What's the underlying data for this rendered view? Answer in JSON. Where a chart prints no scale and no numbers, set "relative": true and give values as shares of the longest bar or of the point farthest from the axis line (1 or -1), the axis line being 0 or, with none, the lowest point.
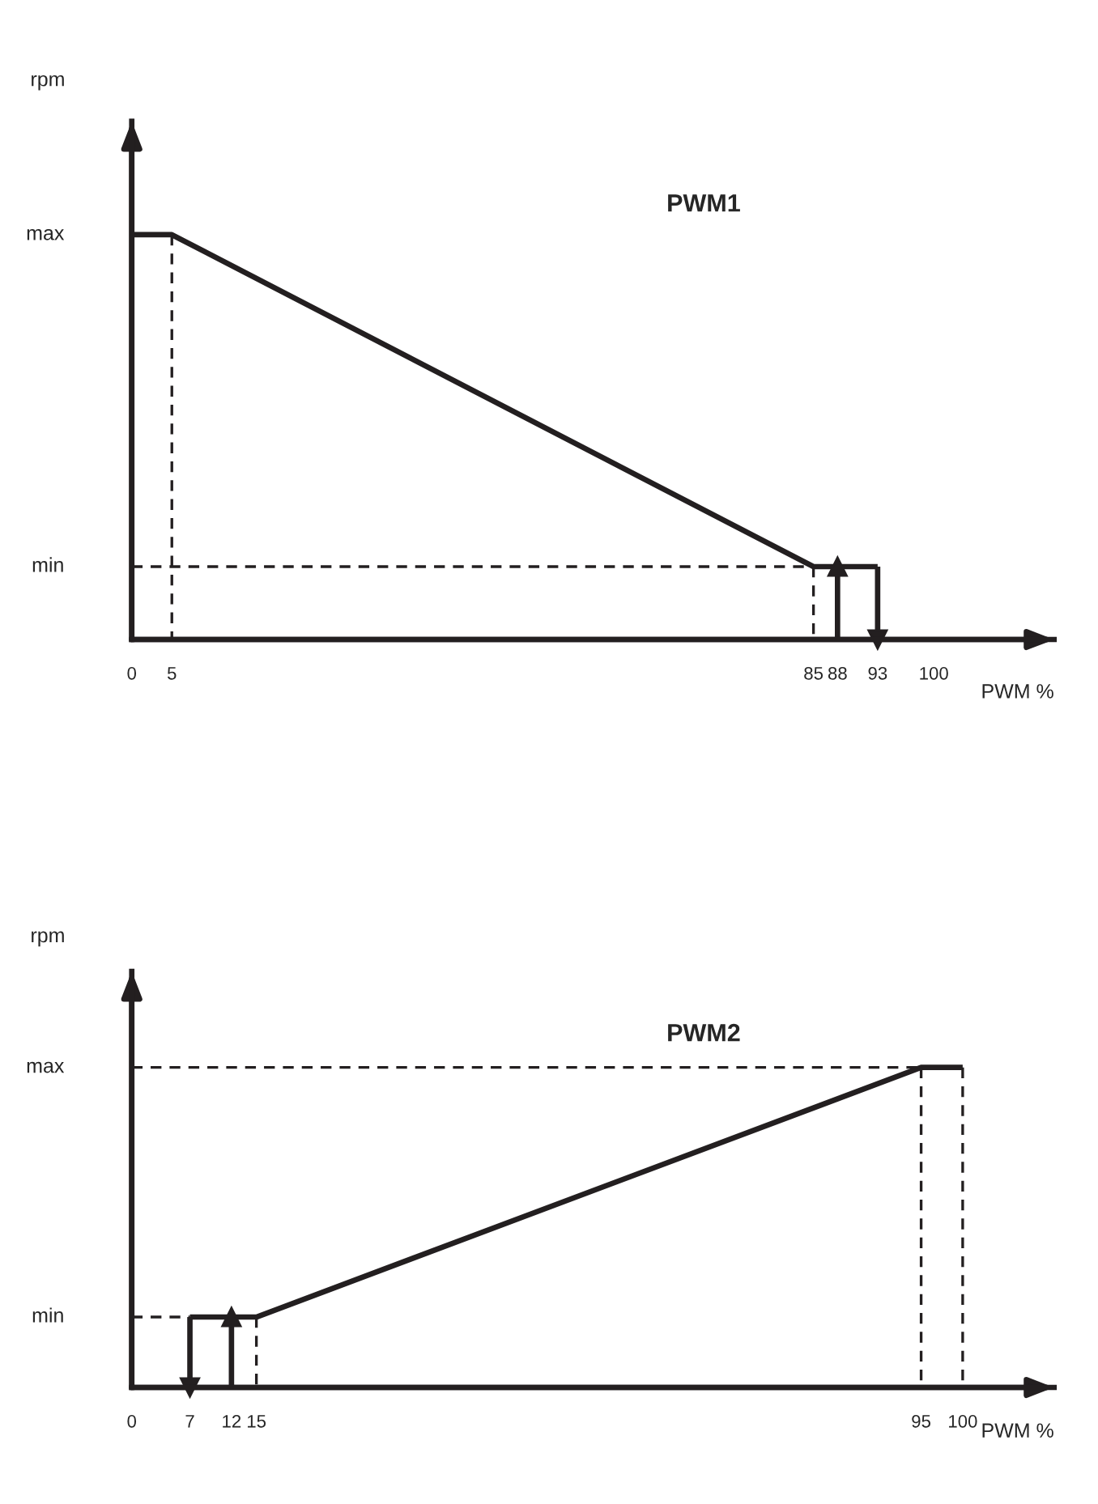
{
  "chart_data": [
    {
      "type": "line",
      "title": "PWM1",
      "xlabel": "PWM %",
      "ylabel": "rpm",
      "relative": true,
      "xlim": [
        0,
        115
      ],
      "xticks": [
        0,
        5,
        85,
        88,
        93,
        100
      ],
      "grid": false,
      "legend": false,
      "annotations": [
        "min",
        "max"
      ],
      "series": [
        {
          "color": "#231f20",
          "line_style": "solid",
          "x": [
            0,
            5,
            85,
            93
          ],
          "values": [
            1,
            1,
            0.18,
            0.18
          ]
        },
        {
          "color": "#231f20",
          "line_style": "solid",
          "marker": "triangle",
          "x": [
            93,
            93
          ],
          "values": [
            0.18,
            0
          ]
        },
        {
          "color": "#231f20",
          "line_style": "solid",
          "marker": "triangle",
          "x": [
            88,
            88
          ],
          "values": [
            0,
            0.18
          ]
        },
        {
          "color": "#231f20",
          "line_style": "dashed",
          "x": [
            5,
            5
          ],
          "values": [
            1,
            0
          ]
        },
        {
          "color": "#231f20",
          "line_style": "dashed",
          "x": [
            0,
            85
          ],
          "values": [
            0.18,
            0.18
          ]
        },
        {
          "color": "#231f20",
          "line_style": "dashed",
          "x": [
            85,
            85
          ],
          "values": [
            0.18,
            0
          ]
        }
      ]
    },
    {
      "type": "line",
      "title": "PWM2",
      "xlabel": "PWM %",
      "ylabel": "rpm",
      "relative": true,
      "xlim": [
        0,
        111
      ],
      "xticks": [
        0,
        7,
        12,
        15,
        95,
        100
      ],
      "grid": false,
      "legend": false,
      "annotations": [
        "min",
        "max"
      ],
      "series": [
        {
          "color": "#231f20",
          "line_style": "solid",
          "x": [
            7,
            15,
            95,
            100
          ],
          "values": [
            0.22,
            0.22,
            1,
            1
          ]
        },
        {
          "color": "#231f20",
          "line_style": "solid",
          "marker": "triangle",
          "x": [
            7,
            7
          ],
          "values": [
            0.22,
            0
          ]
        },
        {
          "color": "#231f20",
          "line_style": "solid",
          "marker": "triangle",
          "x": [
            12,
            12
          ],
          "values": [
            0,
            0.22
          ]
        },
        {
          "color": "#231f20",
          "line_style": "dashed",
          "x": [
            0,
            7
          ],
          "values": [
            0.22,
            0.22
          ]
        },
        {
          "color": "#231f20",
          "line_style": "dashed",
          "x": [
            15,
            15
          ],
          "values": [
            0.22,
            0
          ]
        },
        {
          "color": "#231f20",
          "line_style": "dashed",
          "x": [
            0,
            95
          ],
          "values": [
            1,
            1
          ]
        },
        {
          "color": "#231f20",
          "line_style": "dashed",
          "x": [
            95,
            95
          ],
          "values": [
            1,
            0
          ]
        },
        {
          "color": "#231f20",
          "line_style": "dashed",
          "x": [
            100,
            100
          ],
          "values": [
            1,
            0
          ]
        }
      ]
    }
  ]
}
